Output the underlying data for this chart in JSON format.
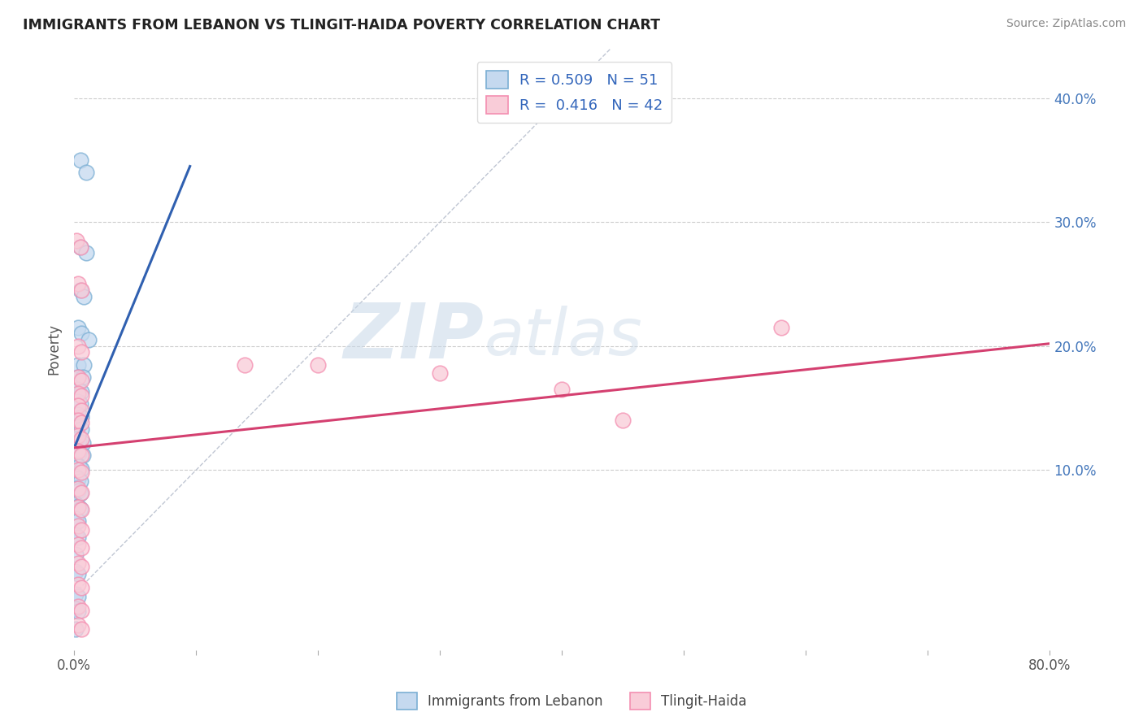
{
  "title": "IMMIGRANTS FROM LEBANON VS TLINGIT-HAIDA POVERTY CORRELATION CHART",
  "source": "Source: ZipAtlas.com",
  "ylabel": "Poverty",
  "xlim": [
    0.0,
    0.8
  ],
  "ylim": [
    -0.045,
    0.44
  ],
  "yticks": [
    0.1,
    0.2,
    0.3,
    0.4
  ],
  "ytick_labels": [
    "10.0%",
    "20.0%",
    "30.0%",
    "40.0%"
  ],
  "grid_color": "#cccccc",
  "legend_R1": "0.509",
  "legend_N1": "51",
  "legend_R2": "0.416",
  "legend_N2": "42",
  "blue_edge": "#7bafd4",
  "pink_edge": "#f48fb1",
  "blue_face": "#c5d9ef",
  "pink_face": "#f9ccd8",
  "line_blue": "#3060b0",
  "line_pink": "#d44070",
  "diag_color": "#b0b8c8",
  "watermark_zip": "ZIP",
  "watermark_atlas": "atlas",
  "scatter_blue": [
    [
      0.005,
      0.35
    ],
    [
      0.01,
      0.34
    ],
    [
      0.005,
      0.28
    ],
    [
      0.01,
      0.275
    ],
    [
      0.005,
      0.245
    ],
    [
      0.008,
      0.24
    ],
    [
      0.003,
      0.215
    ],
    [
      0.006,
      0.21
    ],
    [
      0.012,
      0.205
    ],
    [
      0.003,
      0.185
    ],
    [
      0.008,
      0.185
    ],
    [
      0.003,
      0.175
    ],
    [
      0.007,
      0.175
    ],
    [
      0.003,
      0.165
    ],
    [
      0.006,
      0.163
    ],
    [
      0.003,
      0.155
    ],
    [
      0.005,
      0.153
    ],
    [
      0.003,
      0.145
    ],
    [
      0.006,
      0.143
    ],
    [
      0.003,
      0.135
    ],
    [
      0.006,
      0.133
    ],
    [
      0.002,
      0.125
    ],
    [
      0.004,
      0.123
    ],
    [
      0.007,
      0.122
    ],
    [
      0.002,
      0.115
    ],
    [
      0.004,
      0.113
    ],
    [
      0.007,
      0.112
    ],
    [
      0.002,
      0.105
    ],
    [
      0.004,
      0.103
    ],
    [
      0.006,
      0.101
    ],
    [
      0.001,
      0.095
    ],
    [
      0.003,
      0.093
    ],
    [
      0.005,
      0.091
    ],
    [
      0.001,
      0.085
    ],
    [
      0.003,
      0.083
    ],
    [
      0.005,
      0.081
    ],
    [
      0.001,
      0.073
    ],
    [
      0.003,
      0.071
    ],
    [
      0.005,
      0.069
    ],
    [
      0.001,
      0.061
    ],
    [
      0.003,
      0.059
    ],
    [
      0.001,
      0.048
    ],
    [
      0.003,
      0.046
    ],
    [
      0.001,
      0.032
    ],
    [
      0.001,
      0.018
    ],
    [
      0.003,
      0.016
    ],
    [
      0.001,
      0.0
    ],
    [
      0.003,
      -0.002
    ],
    [
      0.001,
      -0.012
    ],
    [
      0.003,
      -0.014
    ],
    [
      0.001,
      -0.028
    ]
  ],
  "scatter_pink": [
    [
      0.002,
      0.285
    ],
    [
      0.005,
      0.28
    ],
    [
      0.003,
      0.25
    ],
    [
      0.006,
      0.245
    ],
    [
      0.003,
      0.2
    ],
    [
      0.006,
      0.195
    ],
    [
      0.003,
      0.175
    ],
    [
      0.006,
      0.172
    ],
    [
      0.003,
      0.162
    ],
    [
      0.006,
      0.16
    ],
    [
      0.003,
      0.152
    ],
    [
      0.006,
      0.148
    ],
    [
      0.003,
      0.14
    ],
    [
      0.006,
      0.138
    ],
    [
      0.003,
      0.128
    ],
    [
      0.006,
      0.125
    ],
    [
      0.003,
      0.115
    ],
    [
      0.006,
      0.112
    ],
    [
      0.003,
      0.1
    ],
    [
      0.006,
      0.098
    ],
    [
      0.003,
      0.085
    ],
    [
      0.006,
      0.082
    ],
    [
      0.003,
      0.07
    ],
    [
      0.006,
      0.068
    ],
    [
      0.003,
      0.055
    ],
    [
      0.006,
      0.052
    ],
    [
      0.003,
      0.04
    ],
    [
      0.006,
      0.037
    ],
    [
      0.003,
      0.025
    ],
    [
      0.006,
      0.022
    ],
    [
      0.003,
      0.008
    ],
    [
      0.006,
      0.005
    ],
    [
      0.003,
      -0.01
    ],
    [
      0.006,
      -0.013
    ],
    [
      0.003,
      -0.025
    ],
    [
      0.006,
      -0.028
    ],
    [
      0.14,
      0.185
    ],
    [
      0.2,
      0.185
    ],
    [
      0.3,
      0.178
    ],
    [
      0.4,
      0.165
    ],
    [
      0.45,
      0.14
    ],
    [
      0.58,
      0.215
    ]
  ],
  "blue_line_x": [
    0.001,
    0.095
  ],
  "blue_line_y": [
    0.12,
    0.345
  ],
  "pink_line_x": [
    0.0,
    0.8
  ],
  "pink_line_y": [
    0.118,
    0.202
  ],
  "diag_line_x": [
    0.0,
    0.44
  ],
  "diag_line_y": [
    0.0,
    0.44
  ]
}
